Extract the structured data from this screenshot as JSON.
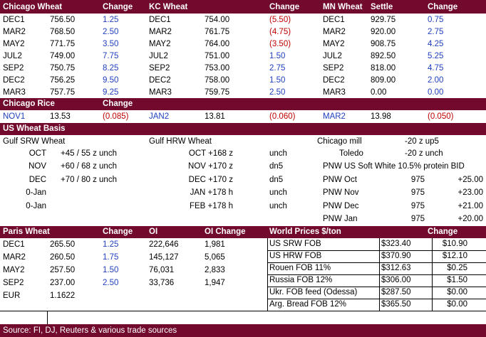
{
  "futures": {
    "headers": [
      "Chicago Wheat",
      "Change",
      "KC Wheat",
      "Change",
      "MN Wheat",
      "Settle",
      "Change"
    ],
    "rows": [
      {
        "c_m": "DEC1",
        "c_p": "756.50",
        "c_ch": "1.25",
        "c_col": "blue",
        "k_m": "DEC1",
        "k_p": "754.00",
        "k_ch": "(5.50)",
        "k_col": "red",
        "m_m": "DEC1",
        "m_p": "929.75",
        "m_ch": "0.75",
        "m_col": "blue"
      },
      {
        "c_m": "MAR2",
        "c_p": "768.50",
        "c_ch": "2.50",
        "c_col": "blue",
        "k_m": "MAR2",
        "k_p": "761.75",
        "k_ch": "(4.75)",
        "k_col": "red",
        "m_m": "MAR2",
        "m_p": "920.00",
        "m_ch": "2.75",
        "m_col": "blue"
      },
      {
        "c_m": "MAY2",
        "c_p": "771.75",
        "c_ch": "3.50",
        "c_col": "blue",
        "k_m": "MAY2",
        "k_p": "764.00",
        "k_ch": "(3.50)",
        "k_col": "red",
        "m_m": "MAY2",
        "m_p": "908.75",
        "m_ch": "4.25",
        "m_col": "blue"
      },
      {
        "c_m": "JUL2",
        "c_p": "749.00",
        "c_ch": "7.75",
        "c_col": "blue",
        "k_m": "JUL2",
        "k_p": "751.00",
        "k_ch": "1.50",
        "k_col": "blue",
        "m_m": "JUL2",
        "m_p": "892.50",
        "m_ch": "5.25",
        "m_col": "blue"
      },
      {
        "c_m": "SEP2",
        "c_p": "750.75",
        "c_ch": "8.25",
        "c_col": "blue",
        "k_m": "SEP2",
        "k_p": "753.00",
        "k_ch": "2.75",
        "k_col": "blue",
        "m_m": "SEP2",
        "m_p": "818.00",
        "m_ch": "4.75",
        "m_col": "blue"
      },
      {
        "c_m": "DEC2",
        "c_p": "756.25",
        "c_ch": "9.50",
        "c_col": "blue",
        "k_m": "DEC2",
        "k_p": "758.00",
        "k_ch": "1.50",
        "k_col": "blue",
        "m_m": "DEC2",
        "m_p": "809.00",
        "m_ch": "2.00",
        "m_col": "blue"
      },
      {
        "c_m": "MAR3",
        "c_p": "757.75",
        "c_ch": "9.25",
        "c_col": "blue",
        "k_m": "MAR3",
        "k_p": "759.75",
        "k_ch": "2.50",
        "k_col": "blue",
        "m_m": "MAR3",
        "m_p": "0.00",
        "m_ch": "0.00",
        "m_col": "blue"
      }
    ]
  },
  "rice": {
    "title": "Chicago Rice",
    "change_label": "Change",
    "items": [
      {
        "month": "NOV1",
        "price": "13.53",
        "change": "(0.085)"
      },
      {
        "month": "JAN2",
        "price": "13.81",
        "change": "(0.060)"
      },
      {
        "month": "MAR2",
        "price": "13.98",
        "change": "(0.050)"
      }
    ]
  },
  "basis": {
    "title": "US Wheat Basis",
    "srw_title": "Gulf SRW Wheat",
    "hrw_title": "Gulf HRW Wheat",
    "srw": [
      {
        "month": "OCT",
        "value": "+45 / 55 z unch"
      },
      {
        "month": "NOV",
        "value": "+60 / 68 z unch"
      },
      {
        "month": "DEC",
        "value": "+70 / 80 z unch"
      },
      {
        "month": "0-Jan",
        "value": ""
      },
      {
        "month": "0-Jan",
        "value": ""
      }
    ],
    "hrw": [
      {
        "label": "OCT +168 z",
        "change": "unch"
      },
      {
        "label": "NOV +170 z",
        "change": "dn5"
      },
      {
        "label": "DEC +170 z",
        "change": "dn5"
      },
      {
        "label": "JAN +178 h",
        "change": "unch"
      },
      {
        "label": "FEB +178 h",
        "change": "unch"
      }
    ],
    "chicago_mill_label": "Chicago mill",
    "chicago_mill_value": "-20 z  up5",
    "toledo_label": "Toledo",
    "toledo_value": "-20 z  unch",
    "pnw_title": "PNW US Soft White 10.5% protein BID",
    "pnw": [
      {
        "label": "PNW Oct",
        "price": "975",
        "change": "+25.00"
      },
      {
        "label": "PNW Nov",
        "price": "975",
        "change": "+23.00"
      },
      {
        "label": "PNW Dec",
        "price": "975",
        "change": "+21.00"
      },
      {
        "label": "PNW Jan",
        "price": "975",
        "change": "+20.00"
      }
    ]
  },
  "paris": {
    "headers": [
      "Paris Wheat",
      "Change",
      "OI",
      "OI Change"
    ],
    "rows": [
      {
        "month": "DEC1",
        "price": "265.50",
        "change": "1.25",
        "oi": "222,646",
        "oi_change": "1,981"
      },
      {
        "month": "MAR2",
        "price": "260.50",
        "change": "1.75",
        "oi": "145,127",
        "oi_change": "5,065"
      },
      {
        "month": "MAY2",
        "price": "257.50",
        "change": "1.50",
        "oi": "76,031",
        "oi_change": "2,833"
      },
      {
        "month": "SEP2",
        "price": "237.00",
        "change": "2.50",
        "oi": "33,736",
        "oi_change": "1,947"
      }
    ],
    "eur_label": "EUR",
    "eur_value": "1.1622"
  },
  "world": {
    "headers": [
      "World Prices $/ton",
      "Change"
    ],
    "rows": [
      {
        "name": "US SRW FOB",
        "price": "$323.40",
        "change": "$10.90"
      },
      {
        "name": "US HRW FOB",
        "price": "$370.90",
        "change": "$12.10"
      },
      {
        "name": "Rouen FOB 11%",
        "price": "$312.63",
        "change": "$0.25"
      },
      {
        "name": "Russia FOB 12%",
        "price": "$306.00",
        "change": "$1.50"
      },
      {
        "name": "Ukr. FOB feed (Odessa)",
        "price": "$287.50",
        "change": "$0.00"
      },
      {
        "name": "Arg. Bread FOB 12%",
        "price": "$365.50",
        "change": "$0.00"
      }
    ]
  },
  "source": "Source: FI, DJ, Reuters & various trade sources",
  "colors": {
    "band": "#720a2e",
    "blue": "#1f3fbf",
    "red": "#c00000"
  }
}
